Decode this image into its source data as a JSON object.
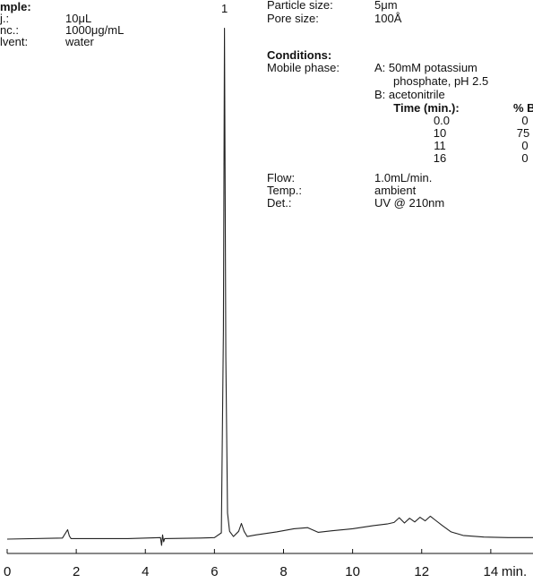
{
  "sample": {
    "heading": "mple:",
    "rows": [
      {
        "label": "j.:",
        "value": "10μL"
      },
      {
        "label": "nc.:",
        "value": "1000μg/mL"
      },
      {
        "label": "lvent:",
        "value": "water"
      }
    ]
  },
  "column": {
    "rows": [
      {
        "label": "Particle size:",
        "value": "5μm"
      },
      {
        "label": "Pore size:",
        "value": "100Å"
      }
    ]
  },
  "conditions": {
    "heading": "Conditions:",
    "mobile_phase_label": "Mobile phase:",
    "mobile_phase_lines": [
      "A: 50mM potassium",
      "phosphate, pH 2.5",
      "B: acetonitrile"
    ],
    "gradient": {
      "time_header": "Time (min.):",
      "percent_header": "% B",
      "times": [
        "0.0",
        "10",
        "11",
        "16"
      ],
      "percents": [
        "0",
        "75",
        "0",
        "0"
      ]
    },
    "rows": [
      {
        "label": "Flow:",
        "value": "1.0mL/min."
      },
      {
        "label": "Temp.:",
        "value": "ambient"
      },
      {
        "label": "Det.:",
        "value": "UV @ 210nm"
      }
    ]
  },
  "chart_data": {
    "type": "line",
    "xlabel": "min.",
    "x_ticks": [
      "0",
      "2",
      "4",
      "6",
      "8",
      "10",
      "12",
      "14"
    ],
    "xlim": [
      0,
      15.3
    ],
    "ylim": [
      0,
      100
    ],
    "grid": false,
    "peak_label": "1",
    "peak_label_x": 6.29,
    "baseline": 0,
    "series": [
      {
        "x": [
          0,
          1.6,
          1.75,
          1.8,
          1.85,
          2.0,
          3.5,
          4.44,
          4.47,
          4.5,
          4.53,
          4.56,
          5.6,
          6.0,
          6.2,
          6.26,
          6.29,
          6.33,
          6.38,
          6.44,
          6.55,
          6.7,
          6.78,
          6.86,
          6.95,
          7.2,
          7.8,
          8.3,
          8.7,
          9.0,
          9.4,
          10.0,
          10.6,
          11.0,
          11.2,
          11.35,
          11.5,
          11.65,
          11.8,
          11.95,
          12.1,
          12.25,
          12.4,
          12.6,
          12.85,
          13.2,
          13.8,
          14.5,
          15.3
        ],
        "y": [
          0,
          0.2,
          1.8,
          0.6,
          0.1,
          0.1,
          0.1,
          0.3,
          -1.2,
          0.8,
          -0.5,
          0.1,
          0.2,
          0.3,
          1.2,
          40,
          98,
          35,
          5,
          1.5,
          0.5,
          1.5,
          3.0,
          1.5,
          0.5,
          0.8,
          1.4,
          2.0,
          2.2,
          1.3,
          1.6,
          2.0,
          2.6,
          2.9,
          3.2,
          4.1,
          3.1,
          4.0,
          3.3,
          4.2,
          3.5,
          4.4,
          3.6,
          2.6,
          1.4,
          0.7,
          0.4,
          0.3,
          0.3
        ]
      }
    ]
  }
}
